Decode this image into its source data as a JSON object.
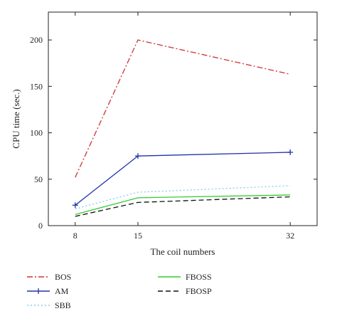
{
  "chart_data": {
    "type": "line",
    "title": "",
    "xlabel": "The coil numbers",
    "ylabel": "CPU time (sec.)",
    "x": [
      8,
      15,
      32
    ],
    "x_ticks": [
      8,
      15,
      32
    ],
    "y_ticks": [
      0,
      50,
      100,
      150,
      200
    ],
    "xlim": [
      5,
      35
    ],
    "ylim": [
      0,
      230
    ],
    "grid": false,
    "legend_position": "bottom",
    "series": [
      {
        "name": "BOS",
        "values": [
          52,
          200,
          163
        ],
        "color": "#cc3333",
        "dash": "dashdot",
        "marker": "none"
      },
      {
        "name": "AM",
        "values": [
          22,
          75,
          79
        ],
        "color": "#2233aa",
        "dash": "solid",
        "marker": "plus"
      },
      {
        "name": "SBB",
        "values": [
          18,
          36,
          43
        ],
        "color": "#88ccee",
        "dash": "dotted",
        "marker": "none"
      },
      {
        "name": "FBOSS",
        "values": [
          12,
          30,
          33
        ],
        "color": "#33cc33",
        "dash": "solid",
        "marker": "none"
      },
      {
        "name": "FBOSP",
        "values": [
          10,
          25,
          31
        ],
        "color": "#111111",
        "dash": "dashed",
        "marker": "none"
      }
    ]
  }
}
